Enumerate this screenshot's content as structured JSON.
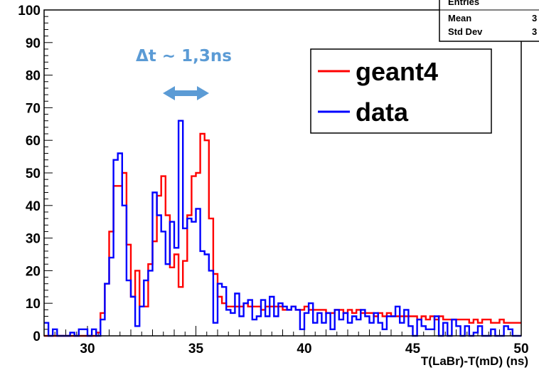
{
  "chart_data": {
    "type": "line",
    "xlabel": "T(LaBr)-T(mD) (ns)",
    "ylabel": "",
    "xlim": [
      28,
      50
    ],
    "ylim": [
      0,
      100
    ],
    "bin_width": 0.2,
    "x_ticks": [
      "30",
      "35",
      "40",
      "45",
      "50"
    ],
    "y_ticks": [
      "0",
      "10",
      "20",
      "30",
      "40",
      "50",
      "60",
      "70",
      "80",
      "90",
      "100"
    ],
    "grid": false,
    "legend_position": "top-right",
    "series": [
      {
        "name": "geant4",
        "color": "#ff0000",
        "x_start": 28,
        "values": [
          0,
          0,
          0,
          0,
          0,
          0,
          0,
          0,
          0,
          0,
          0,
          0,
          1,
          7,
          16,
          32,
          46,
          46,
          50,
          28,
          12,
          20,
          9,
          9,
          22,
          29,
          43,
          49,
          37,
          21,
          25,
          15,
          23,
          37,
          49,
          50,
          62,
          60,
          36,
          19,
          12,
          10,
          9,
          9,
          9,
          9,
          10,
          9,
          9,
          9,
          8,
          9,
          9,
          9,
          9,
          8,
          8,
          9,
          8,
          8,
          9,
          8,
          8,
          8,
          8,
          7,
          7,
          8,
          8,
          7,
          8,
          7,
          8,
          7,
          7,
          7,
          6,
          7,
          6,
          7,
          6,
          6,
          6,
          6,
          6,
          6,
          5,
          6,
          5,
          6,
          5,
          6,
          5,
          5,
          5,
          5,
          5,
          5,
          4,
          5,
          4,
          5,
          5,
          4,
          4,
          5,
          4,
          4,
          4,
          4
        ]
      },
      {
        "name": "data",
        "color": "#0000ff",
        "x_start": 28,
        "values": [
          4,
          0,
          2,
          0,
          0,
          0,
          1,
          0,
          2,
          2,
          0,
          2,
          0,
          5,
          16,
          24,
          54,
          56,
          40,
          17,
          12,
          3,
          9,
          17,
          20,
          44,
          37,
          32,
          22,
          35,
          27,
          66,
          33,
          36,
          35,
          39,
          26,
          25,
          20,
          4,
          16,
          15,
          8,
          7,
          13,
          6,
          10,
          11,
          5,
          6,
          11,
          6,
          12,
          6,
          10,
          9,
          8,
          9,
          8,
          2,
          7,
          10,
          4,
          7,
          4,
          7,
          2,
          8,
          5,
          7,
          4,
          6,
          5,
          8,
          6,
          4,
          7,
          4,
          2,
          6,
          6,
          9,
          4,
          8,
          3,
          0,
          5,
          3,
          2,
          2,
          6,
          0,
          4,
          0,
          5,
          3,
          0,
          3,
          0,
          1,
          3,
          0,
          0,
          2,
          0,
          0,
          3,
          2,
          0,
          0
        ]
      }
    ],
    "stats_box": {
      "rows": [
        {
          "label": "Entries",
          "value": ""
        },
        {
          "label": "Mean",
          "value": "3"
        },
        {
          "label": "Std Dev",
          "value": "3"
        }
      ]
    },
    "annotation": {
      "text": "Δt ~ 1,3ns",
      "color": "#5b9bd5"
    }
  }
}
